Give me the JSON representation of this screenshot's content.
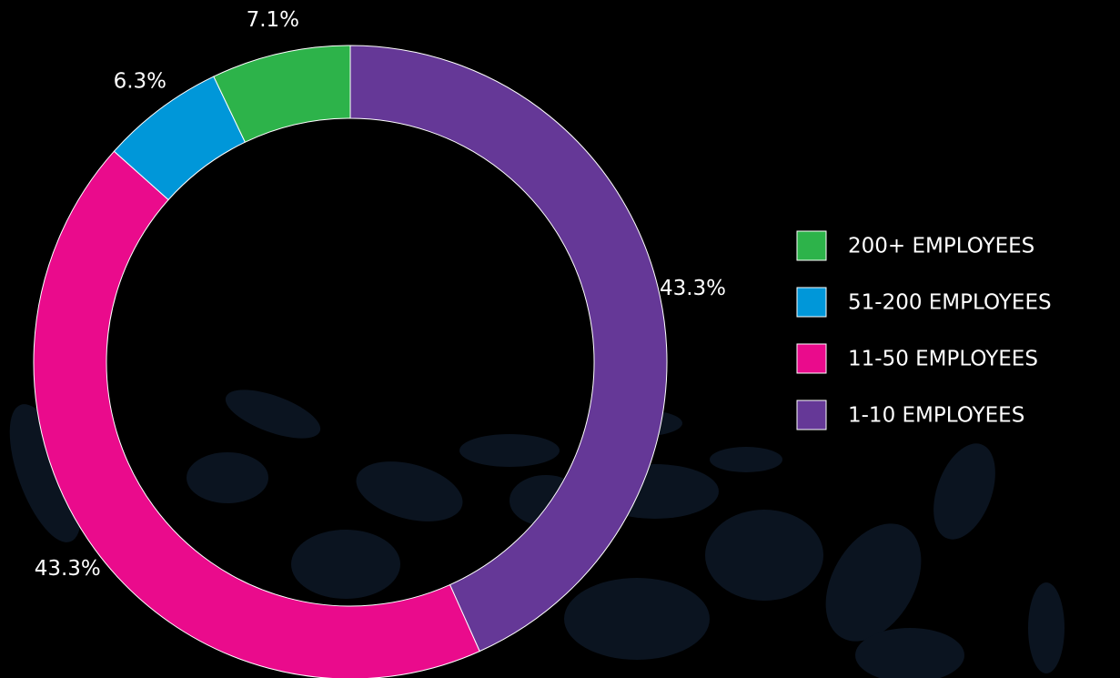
{
  "chart_data": {
    "type": "donut",
    "categories": [
      "1-10 EMPLOYEES",
      "11-50 EMPLOYEES",
      "51-200 EMPLOYEES",
      "200+ EMPLOYEES"
    ],
    "values": [
      43.3,
      43.3,
      6.3,
      7.1
    ],
    "value_labels": [
      "43.3%",
      "43.3%",
      "6.3%",
      "7.1%"
    ],
    "colors": [
      "#653897",
      "#ea0b8c",
      "#0097d9",
      "#2db34a"
    ],
    "legend": "right"
  }
}
